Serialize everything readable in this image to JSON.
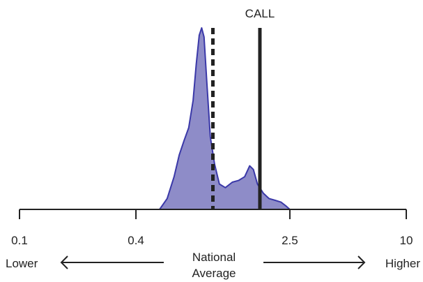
{
  "chart_data": {
    "type": "area",
    "title": "",
    "scale": "log",
    "xlim": [
      0.1,
      10
    ],
    "ticks": [
      {
        "value": 0.1,
        "label": "0.1"
      },
      {
        "value": 0.4,
        "label": "0.4"
      },
      {
        "value": 2.5,
        "label": "2.5"
      },
      {
        "value": 10,
        "label": "10"
      }
    ],
    "reference_line": {
      "value": 1.0,
      "style": "dashed",
      "meaning": "National Average"
    },
    "marker": {
      "label": "CALL",
      "value": 1.75,
      "style": "solid"
    },
    "direction": {
      "left": "Lower",
      "center": [
        "National",
        "Average"
      ],
      "right": "Higher"
    },
    "fill_color": "#8e8cc8",
    "stroke_color": "#3a38a8",
    "density": [
      {
        "x": 0.53,
        "y": 0.0
      },
      {
        "x": 0.58,
        "y": 0.06
      },
      {
        "x": 0.63,
        "y": 0.18
      },
      {
        "x": 0.67,
        "y": 0.3
      },
      {
        "x": 0.71,
        "y": 0.38
      },
      {
        "x": 0.75,
        "y": 0.45
      },
      {
        "x": 0.79,
        "y": 0.6
      },
      {
        "x": 0.82,
        "y": 0.8
      },
      {
        "x": 0.85,
        "y": 0.96
      },
      {
        "x": 0.875,
        "y": 1.0
      },
      {
        "x": 0.9,
        "y": 0.95
      },
      {
        "x": 0.93,
        "y": 0.7
      },
      {
        "x": 0.97,
        "y": 0.4
      },
      {
        "x": 1.02,
        "y": 0.25
      },
      {
        "x": 1.08,
        "y": 0.14
      },
      {
        "x": 1.16,
        "y": 0.12
      },
      {
        "x": 1.26,
        "y": 0.15
      },
      {
        "x": 1.36,
        "y": 0.16
      },
      {
        "x": 1.46,
        "y": 0.18
      },
      {
        "x": 1.55,
        "y": 0.24
      },
      {
        "x": 1.62,
        "y": 0.22
      },
      {
        "x": 1.7,
        "y": 0.14
      },
      {
        "x": 1.82,
        "y": 0.09
      },
      {
        "x": 1.95,
        "y": 0.06
      },
      {
        "x": 2.1,
        "y": 0.05
      },
      {
        "x": 2.25,
        "y": 0.04
      },
      {
        "x": 2.38,
        "y": 0.02
      },
      {
        "x": 2.5,
        "y": 0.0
      }
    ]
  }
}
